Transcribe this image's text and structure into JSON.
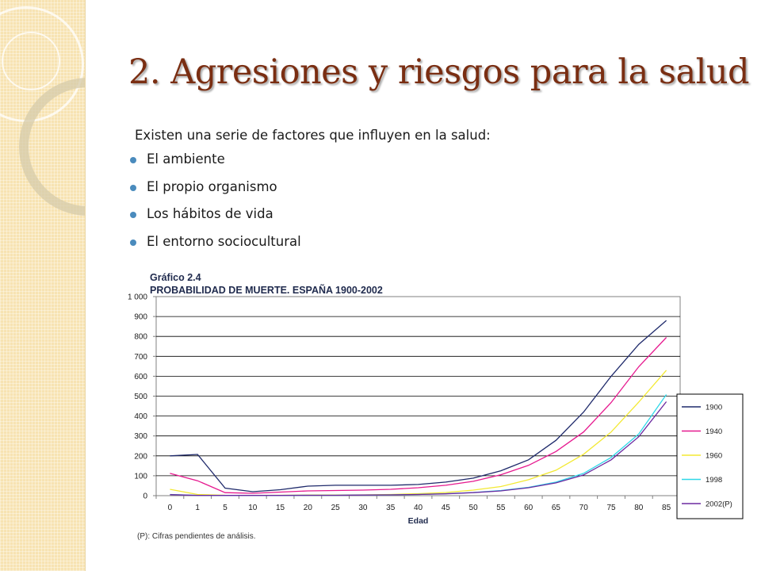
{
  "slide": {
    "title": "2. Agresiones y riesgos para la salud",
    "intro": "Existen una serie de factores que influyen en la salud:",
    "bullets": [
      "El ambiente",
      "El propio organismo",
      "Los hábitos de vida",
      "El entorno sociocultural"
    ],
    "colors": {
      "title": "#7a2e12",
      "bullet": "#4a8bbd",
      "sidebar": "#f7e3b2"
    }
  },
  "chart_data": {
    "type": "line",
    "title": "Gráfico 2.4",
    "subtitle": "PROBABILIDAD DE MUERTE. ESPAÑA 1900-2002",
    "xlabel": "Edad",
    "ylabel": "",
    "categories": [
      "0",
      "1",
      "5",
      "10",
      "15",
      "20",
      "25",
      "30",
      "35",
      "40",
      "45",
      "50",
      "55",
      "60",
      "65",
      "70",
      "75",
      "80",
      "85"
    ],
    "yticks": [
      "0",
      "100",
      "200",
      "300",
      "400",
      "500",
      "600",
      "700",
      "800",
      "900",
      "1 000"
    ],
    "ylim": [
      0,
      1000
    ],
    "grid": true,
    "legend_position": "right",
    "note": "(P): Cifras pendientes de análisis.",
    "series": [
      {
        "name": "1900",
        "color": "#1f2a6b",
        "values": [
          200,
          207,
          38,
          20,
          30,
          48,
          52,
          52,
          52,
          56,
          68,
          88,
          125,
          180,
          278,
          420,
          600,
          760,
          880
        ]
      },
      {
        "name": "1940",
        "color": "#e6198f",
        "values": [
          112,
          75,
          15,
          12,
          18,
          24,
          26,
          28,
          32,
          40,
          52,
          72,
          105,
          152,
          222,
          320,
          468,
          648,
          795
        ]
      },
      {
        "name": "1960",
        "color": "#f3e932",
        "values": [
          32,
          6,
          2,
          1,
          2,
          3,
          3,
          4,
          6,
          10,
          16,
          28,
          46,
          80,
          128,
          208,
          320,
          470,
          630
        ]
      },
      {
        "name": "1998",
        "color": "#2fd7e8",
        "values": [
          6,
          1,
          1,
          1,
          1,
          2,
          2,
          3,
          4,
          6,
          10,
          16,
          26,
          42,
          68,
          112,
          192,
          310,
          508
        ]
      },
      {
        "name": "2002(P)",
        "color": "#6b2aa0",
        "values": [
          5,
          1,
          1,
          1,
          1,
          2,
          2,
          3,
          4,
          6,
          9,
          15,
          24,
          40,
          64,
          104,
          180,
          296,
          472
        ]
      }
    ]
  }
}
